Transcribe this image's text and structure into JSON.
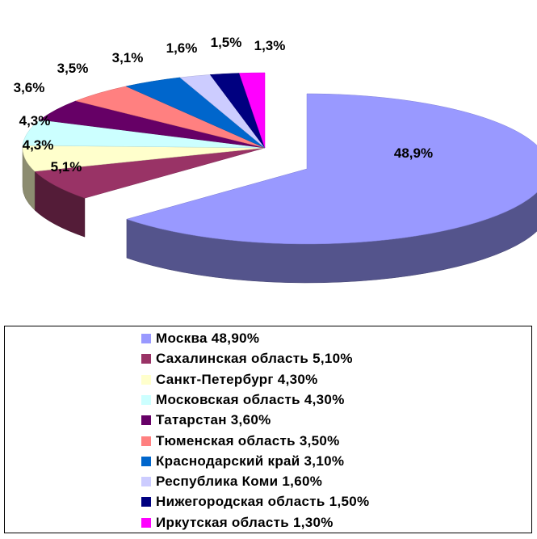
{
  "chart_data": {
    "type": "pie",
    "variant": "3d-exploded",
    "slices": [
      {
        "name": "Москва",
        "value": 48.9,
        "label": "48,9%",
        "legend": "Москва  48,90%",
        "color": "#9999FF",
        "exploded": true
      },
      {
        "name": "Сахалинская область",
        "value": 5.1,
        "label": "5,1%",
        "legend": "Сахалинская область  5,10%",
        "color": "#993366"
      },
      {
        "name": "Санкт-Петербург",
        "value": 4.3,
        "label": "4,3%",
        "legend": "Санкт-Петербург 4,30%",
        "color": "#FFFFCC"
      },
      {
        "name": "Московская область",
        "value": 4.3,
        "label": "4,3%",
        "legend": "Московская область  4,30%",
        "color": "#CCFFFF"
      },
      {
        "name": "Татарстан",
        "value": 3.6,
        "label": "3,6%",
        "legend": "Татарстан  3,60%",
        "color": "#660066"
      },
      {
        "name": "Тюменская область",
        "value": 3.5,
        "label": "3,5%",
        "legend": "Тюменская область  3,50%",
        "color": "#FF8080"
      },
      {
        "name": "Краснодарский край",
        "value": 3.1,
        "label": "3,1%",
        "legend": "Краснодарский край 3,10%",
        "color": "#0066CC"
      },
      {
        "name": "Республика Коми",
        "value": 1.6,
        "label": "1,6%",
        "legend": "Республика Коми  1,60%",
        "color": "#CCCCFF"
      },
      {
        "name": "Нижегородская область",
        "value": 1.5,
        "label": "1,5%",
        "legend": "Нижегородская область  1,50%",
        "color": "#000080"
      },
      {
        "name": "Иркутская область",
        "value": 1.3,
        "label": "1,3%",
        "legend": "Иркутская область  1,30%",
        "color": "#FF00FF"
      }
    ],
    "legend_position": "bottom"
  }
}
